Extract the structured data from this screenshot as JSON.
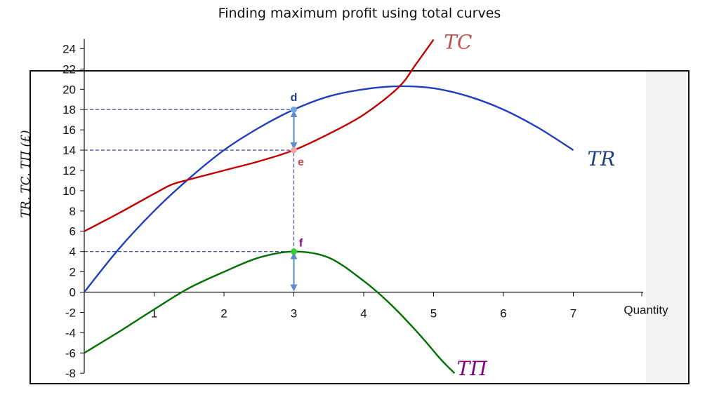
{
  "title": "Finding maximum profit using total curves",
  "chart_data": {
    "type": "line",
    "title": "Finding maximum profit using total curves",
    "xlabel": "Quantity",
    "ylabel": "TR, TC, TΠ (£)",
    "xlim": [
      0,
      8
    ],
    "ylim": [
      -8,
      24
    ],
    "xticks": [
      1,
      2,
      3,
      4,
      5,
      6,
      7
    ],
    "yticks": [
      -8,
      -6,
      -4,
      -2,
      0,
      2,
      4,
      6,
      8,
      10,
      12,
      14,
      16,
      18,
      20,
      22,
      24
    ],
    "grid": false,
    "series": [
      {
        "name": "TR",
        "color": "#1f3fbf",
        "label_color": "#1f3f7f",
        "x": [
          0,
          0.5,
          1,
          1.5,
          2,
          2.5,
          3,
          3.5,
          4,
          4.5,
          5,
          5.5,
          6,
          6.5,
          7
        ],
        "y": [
          0,
          4.3,
          8,
          11.2,
          14,
          16.2,
          18,
          19.3,
          20,
          20.3,
          20.1,
          19.3,
          18,
          16.2,
          14
        ]
      },
      {
        "name": "TC",
        "color": "#c00000",
        "label_color": "#c0504d",
        "x": [
          0,
          0.5,
          1,
          1.25,
          1.5,
          2,
          2.5,
          3,
          3.5,
          4,
          4.5,
          4.75,
          5.0
        ],
        "y": [
          6,
          7.8,
          9.7,
          10.6,
          11.1,
          12,
          12.9,
          14,
          15.6,
          17.5,
          20.2,
          22.5,
          24.9
        ]
      },
      {
        "name": "TΠ",
        "color": "#007000",
        "label_color": "#7f007f",
        "x": [
          0,
          0.5,
          1,
          1.5,
          2,
          2.5,
          3,
          3.5,
          4,
          4.4,
          4.8,
          5.1,
          5.3
        ],
        "y": [
          -6,
          -3.9,
          -1.7,
          0.4,
          2,
          3.4,
          4,
          3.4,
          1.1,
          -1.3,
          -4.2,
          -6.6,
          -8
        ]
      }
    ],
    "points": [
      {
        "label": "d",
        "x": 3,
        "y": 18,
        "color": "#6fa8dc",
        "label_color": "#1f3f7f"
      },
      {
        "label": "e",
        "x": 3,
        "y": 14,
        "color": "#f4a6a6",
        "label_color": "#c0504d"
      },
      {
        "label": "f",
        "x": 3,
        "y": 4,
        "color": "#33cc33",
        "label_color": "#7f007f"
      }
    ],
    "guide_lines": [
      {
        "y": 18,
        "x_to": 3
      },
      {
        "y": 14,
        "x_to": 3
      },
      {
        "y": 4,
        "x_to": 3
      }
    ],
    "vertical_guide": {
      "x": 3,
      "y_from": 4,
      "y_to": 14
    },
    "arrows": [
      {
        "x": 3,
        "y_from": 14,
        "y_to": 18
      },
      {
        "x": 3,
        "y_from": 0,
        "y_to": 4
      }
    ],
    "curve_labels": [
      {
        "text": "TC",
        "x": 5.35,
        "y": 24,
        "color": "#c0504d"
      },
      {
        "text": "TR",
        "x": 7.4,
        "y": 12.5,
        "color": "#1f3f7f"
      },
      {
        "text": "TΠ",
        "x": 5.55,
        "y": -8.2,
        "color": "#7f007f"
      }
    ]
  }
}
